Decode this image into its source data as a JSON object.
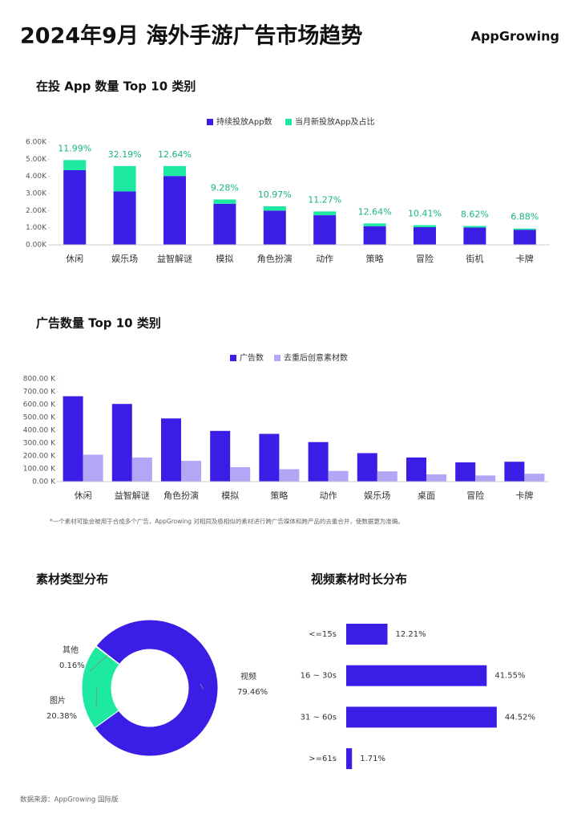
{
  "header": {
    "title": "2024年9月 海外手游广告市场趋势",
    "logo": "AppGrowing"
  },
  "chart_data": [
    {
      "type": "bar",
      "stacked": true,
      "title": "在投 App 数量 Top 10 类别",
      "categories": [
        "休闲",
        "娱乐场",
        "益智解谜",
        "模拟",
        "角色扮演",
        "动作",
        "策略",
        "冒险",
        "街机",
        "卡牌"
      ],
      "series": [
        {
          "name": "持续投放App数",
          "color": "#3a1ee6",
          "values": [
            4360,
            3120,
            4020,
            2400,
            2000,
            1730,
            1090,
            1030,
            1010,
            880
          ]
        },
        {
          "name": "当月新投放App及占比",
          "color": "#1de9a0",
          "values": [
            590,
            1480,
            580,
            250,
            250,
            220,
            160,
            120,
            90,
            70
          ]
        }
      ],
      "annotations": [
        "11.99%",
        "32.19%",
        "12.64%",
        "9.28%",
        "10.97%",
        "11.27%",
        "12.64%",
        "10.41%",
        "8.62%",
        "6.88%"
      ],
      "ylim": [
        0,
        6000
      ],
      "yticks": [
        {
          "value": 0,
          "label": "0.00K"
        },
        {
          "value": 1000,
          "label": "1.00K"
        },
        {
          "value": 2000,
          "label": "2.00K"
        },
        {
          "value": 3000,
          "label": "3.00K"
        },
        {
          "value": 4000,
          "label": "4.00K"
        },
        {
          "value": 5000,
          "label": "5.00K"
        },
        {
          "value": 6000,
          "label": "6.00K"
        }
      ],
      "grid": false,
      "legend": "top"
    },
    {
      "type": "bar",
      "stacked": false,
      "title": "广告数量 Top 10 类别",
      "categories": [
        "休闲",
        "益智解谜",
        "角色扮演",
        "模拟",
        "策略",
        "动作",
        "娱乐场",
        "桌面",
        "冒险",
        "卡牌"
      ],
      "series": [
        {
          "name": "广告数",
          "color": "#3a1ee6",
          "values": [
            665000,
            605000,
            492000,
            395000,
            372000,
            308000,
            222000,
            188000,
            150000,
            155000
          ]
        },
        {
          "name": "去重后创意素材数",
          "color": "#b3a6f7",
          "values": [
            210000,
            188000,
            162000,
            113000,
            97000,
            83000,
            80000,
            57000,
            48000,
            62000
          ]
        }
      ],
      "ylim": [
        0,
        800000
      ],
      "yticks": [
        {
          "value": 0,
          "label": "0.00 K"
        },
        {
          "value": 100000,
          "label": "100.00 K"
        },
        {
          "value": 200000,
          "label": "200.00 K"
        },
        {
          "value": 300000,
          "label": "300.00 K"
        },
        {
          "value": 400000,
          "label": "400.00 K"
        },
        {
          "value": 500000,
          "label": "500.00 K"
        },
        {
          "value": 600000,
          "label": "600.00 K"
        },
        {
          "value": 700000,
          "label": "700.00 K"
        },
        {
          "value": 800000,
          "label": "800.00 K"
        }
      ],
      "grid": false,
      "legend": "top",
      "footnote": "*一个素材可能会被用于合成多个广告，AppGrowing 对相同及极相似的素材进行跨广告媒体和跨产品的去重合并，使数据更为准确。"
    },
    {
      "type": "pie",
      "donut": true,
      "title": "素材类型分布",
      "categories": [
        "视频",
        "图片",
        "其他"
      ],
      "values": [
        79.46,
        20.38,
        0.16
      ],
      "value_labels": [
        "79.46%",
        "20.38%",
        "0.16%"
      ],
      "colors": [
        "#3a1ee6",
        "#1de9a0",
        "#5b6fd6"
      ]
    },
    {
      "type": "barh",
      "title": "视频素材时长分布",
      "categories": [
        "<=15s",
        "16 ~ 30s",
        "31 ~ 60s",
        ">=61s"
      ],
      "values": [
        12.21,
        41.55,
        44.52,
        1.71
      ],
      "value_labels": [
        "12.21%",
        "41.55%",
        "44.52%",
        "1.71%"
      ],
      "color": "#3a1ee6"
    }
  ],
  "source": "数据来源：AppGrowing 国际版"
}
